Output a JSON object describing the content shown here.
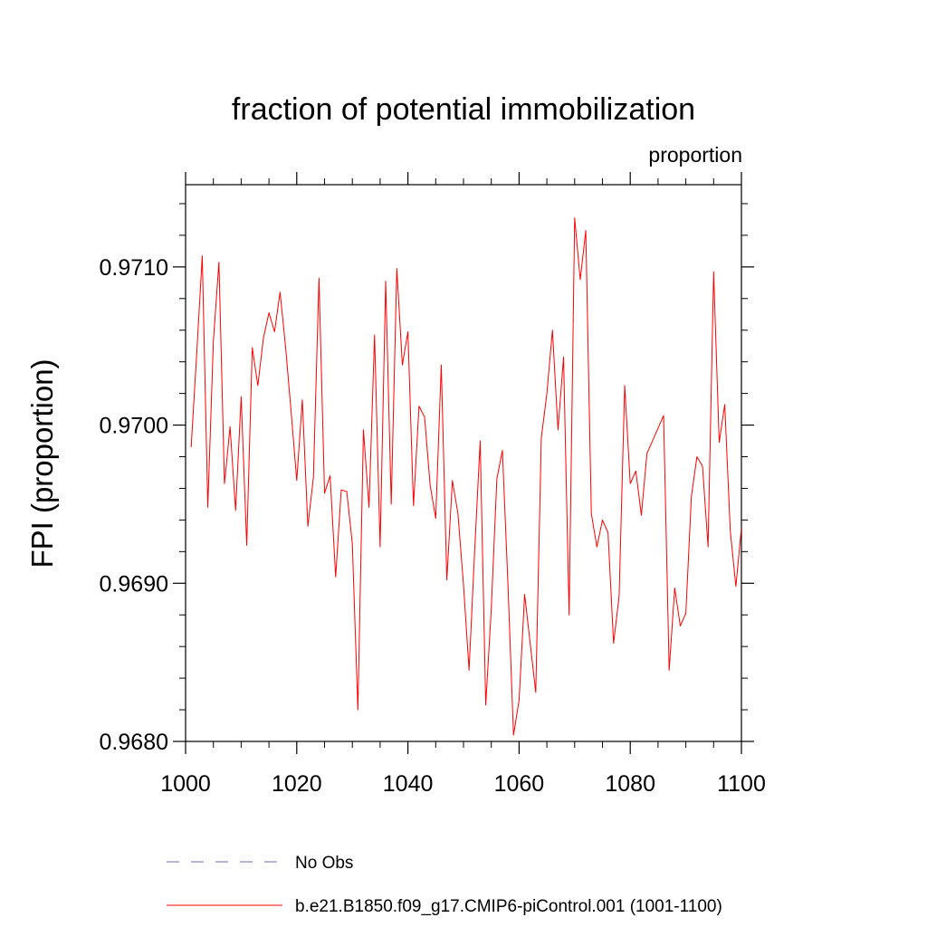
{
  "chart_data": {
    "type": "line",
    "title": "fraction of potential immobilization",
    "units_label": "proportion",
    "ylabel": "FPI  (proportion)",
    "xlabel": "",
    "xlim": [
      1000,
      1100
    ],
    "ylim": [
      0.968,
      0.97152
    ],
    "x_ticks": [
      1000,
      1020,
      1040,
      1060,
      1080,
      1100
    ],
    "x_tick_labels": [
      "1000",
      "1020",
      "1040",
      "1060",
      "1080",
      "1100"
    ],
    "y_ticks": [
      0.968,
      0.969,
      0.97,
      0.971
    ],
    "y_tick_labels": [
      "0.9680",
      "0.9690",
      "0.9700",
      "0.9710"
    ],
    "x_minor_step": 5,
    "y_minor_step": 0.0002,
    "legend_position": "bottom",
    "series": [
      {
        "name": "No Obs",
        "color": "#6a6ab4",
        "dash": "dashed",
        "x": [],
        "values": []
      },
      {
        "name": "b.e21.B1850.f09_g17.CMIP6-piControl.001 (1001-1100)",
        "color": "#ff0000",
        "dash": "solid",
        "x": [
          1001,
          1002,
          1003,
          1004,
          1005,
          1006,
          1007,
          1008,
          1009,
          1010,
          1011,
          1012,
          1013,
          1014,
          1015,
          1016,
          1017,
          1018,
          1019,
          1020,
          1021,
          1022,
          1023,
          1024,
          1025,
          1026,
          1027,
          1028,
          1029,
          1030,
          1031,
          1032,
          1033,
          1034,
          1035,
          1036,
          1037,
          1038,
          1039,
          1040,
          1041,
          1042,
          1043,
          1044,
          1045,
          1046,
          1047,
          1048,
          1049,
          1050,
          1051,
          1052,
          1053,
          1054,
          1055,
          1056,
          1057,
          1058,
          1059,
          1060,
          1061,
          1062,
          1063,
          1064,
          1065,
          1066,
          1067,
          1068,
          1069,
          1070,
          1071,
          1072,
          1073,
          1074,
          1075,
          1076,
          1077,
          1078,
          1079,
          1080,
          1081,
          1082,
          1083,
          1084,
          1085,
          1086,
          1087,
          1088,
          1089,
          1090,
          1091,
          1092,
          1093,
          1094,
          1095,
          1096,
          1097,
          1098,
          1099,
          1100
        ],
        "values": [
          0.96986,
          0.97045,
          0.97107,
          0.96948,
          0.97053,
          0.97103,
          0.96963,
          0.96999,
          0.96946,
          0.97018,
          0.96924,
          0.97049,
          0.97025,
          0.97055,
          0.97071,
          0.97059,
          0.97084,
          0.97049,
          0.97008,
          0.96965,
          0.97016,
          0.96936,
          0.96967,
          0.97093,
          0.96957,
          0.96968,
          0.96904,
          0.96959,
          0.96958,
          0.96925,
          0.9682,
          0.96997,
          0.96948,
          0.97057,
          0.96923,
          0.97091,
          0.9695,
          0.97099,
          0.97038,
          0.97059,
          0.96949,
          0.97012,
          0.97005,
          0.96962,
          0.96941,
          0.97038,
          0.96902,
          0.96965,
          0.96944,
          0.96899,
          0.96845,
          0.9692,
          0.9699,
          0.96823,
          0.96884,
          0.96966,
          0.96984,
          0.96899,
          0.96804,
          0.96826,
          0.96893,
          0.96862,
          0.96831,
          0.96992,
          0.9702,
          0.9706,
          0.96997,
          0.97043,
          0.9688,
          0.97131,
          0.97092,
          0.97123,
          0.96944,
          0.96923,
          0.9694,
          0.96932,
          0.96862,
          0.96892,
          0.97025,
          0.96963,
          0.96971,
          0.96943,
          0.96982,
          0.9699,
          0.96998,
          0.97006,
          0.96845,
          0.96897,
          0.96873,
          0.96881,
          0.96955,
          0.9698,
          0.96974,
          0.96923,
          0.97097,
          0.96989,
          0.97013,
          0.96933,
          0.96898,
          0.96935
        ]
      }
    ]
  }
}
